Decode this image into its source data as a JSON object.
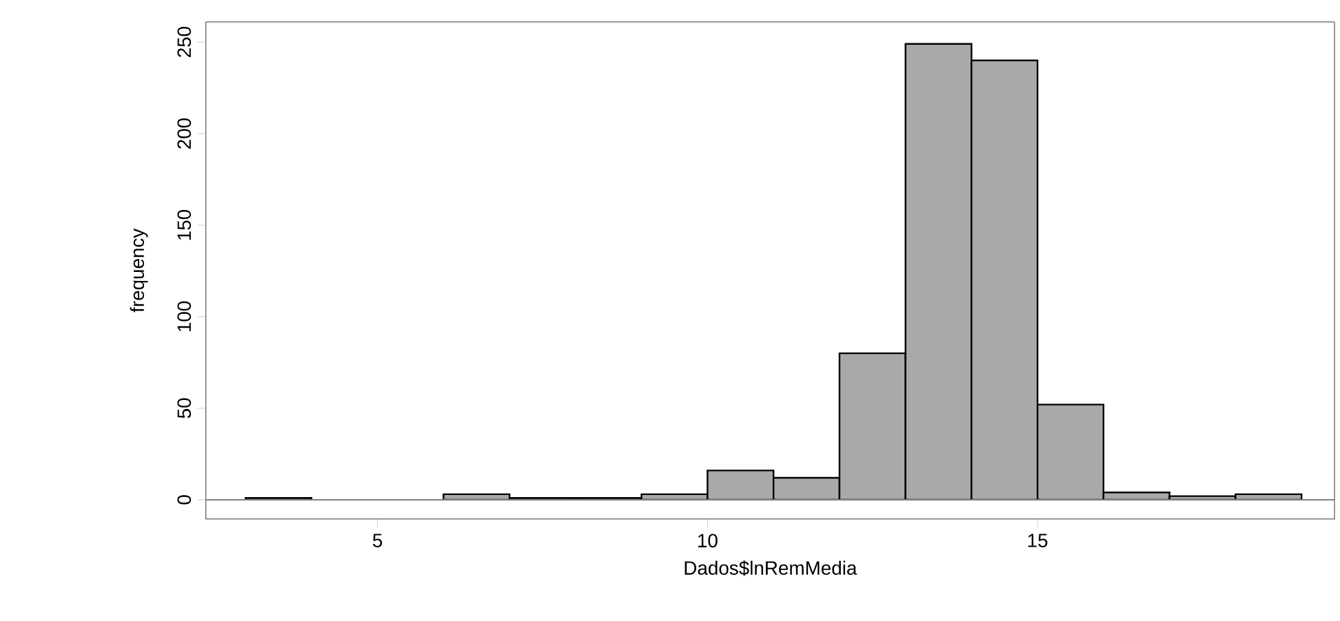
{
  "chart_data": {
    "type": "histogram",
    "xlabel": "Dados$lnRemMedia",
    "ylabel": "frequency",
    "bins": [
      3,
      4,
      5,
      6,
      7,
      8,
      9,
      10,
      11,
      12,
      13,
      14,
      15,
      16,
      17,
      18,
      19
    ],
    "values": [
      1,
      0,
      0,
      3,
      1,
      1,
      3,
      16,
      12,
      80,
      249,
      240,
      52,
      4,
      2,
      3
    ],
    "color": "#a9a9a9",
    "xlim": [
      2.4,
      19.5
    ],
    "ylim": [
      -10.5,
      261
    ],
    "xticks": [
      5,
      10,
      15
    ],
    "yticks": [
      0,
      50,
      100,
      150,
      200,
      250
    ],
    "ref_lines": [
      {
        "axis": "y",
        "value": 0,
        "color": "#808080"
      }
    ],
    "grid": false
  }
}
